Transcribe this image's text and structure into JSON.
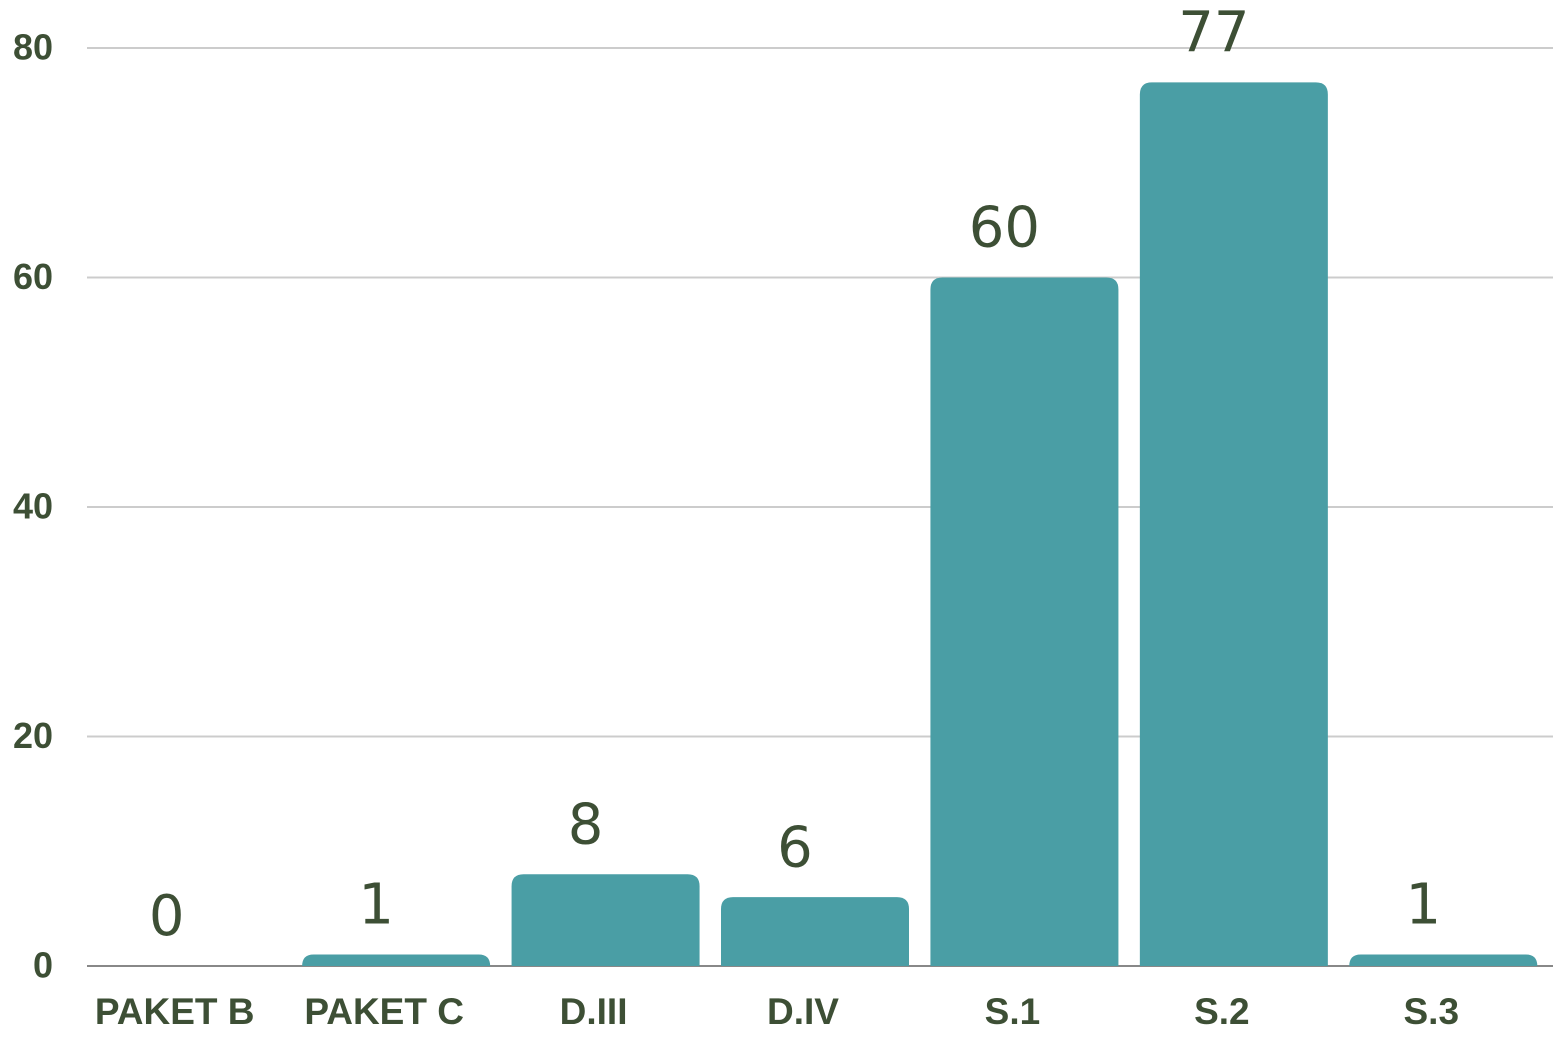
{
  "chart_data": {
    "type": "bar",
    "categories": [
      "PAKET B",
      "PAKET C",
      "D.III",
      "D.IV",
      "S.1",
      "S.2",
      "S.3"
    ],
    "values": [
      0,
      1,
      8,
      6,
      60,
      77,
      1
    ],
    "color": "#4a9ea5",
    "ylim": [
      0,
      80
    ],
    "yticks": [
      0,
      20,
      40,
      60,
      80
    ],
    "grid": true
  }
}
